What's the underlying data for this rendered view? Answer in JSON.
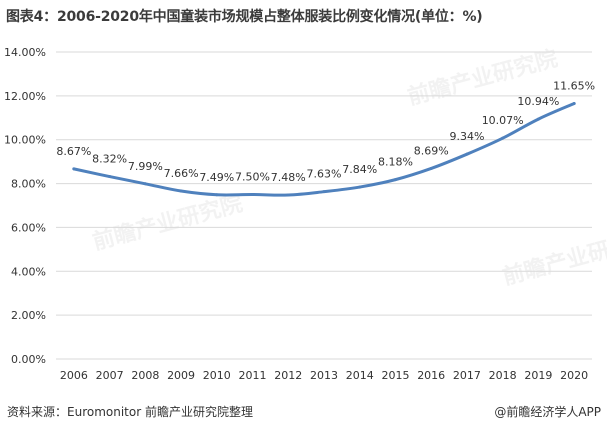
{
  "header": {
    "title": "图表4：2006-2020年中国童装市场规模占整体服装比例变化情况(单位：%)"
  },
  "footer": {
    "source": "资料来源：Euromonitor 前瞻产业研究院整理",
    "credit": "@前瞻经济学人APP"
  },
  "watermark": {
    "text": "前瞻产业研究院"
  },
  "colors": {
    "line": "#4f81bd",
    "grid": "#d9d9d9",
    "axis_text": "#333333",
    "label_text": "#333333"
  },
  "chart_data": {
    "type": "line",
    "title": "图表4：2006-2020年中国童装市场规模占整体服装比例变化情况(单位：%)",
    "xlabel": "",
    "ylabel": "",
    "categories": [
      "2006",
      "2007",
      "2008",
      "2009",
      "2010",
      "2011",
      "2012",
      "2013",
      "2014",
      "2015",
      "2016",
      "2017",
      "2018",
      "2019",
      "2020"
    ],
    "series": [
      {
        "values": [
          8.67,
          8.32,
          7.99,
          7.66,
          7.49,
          7.5,
          7.48,
          7.63,
          7.84,
          8.18,
          8.69,
          9.34,
          10.07,
          10.94,
          11.65
        ],
        "labels": [
          "8.67%",
          "8.32%",
          "7.99%",
          "7.66%",
          "7.49%",
          "7.50%",
          "7.48%",
          "7.63%",
          "7.84%",
          "8.18%",
          "8.69%",
          "9.34%",
          "10.07%",
          "10.94%",
          "11.65%"
        ]
      }
    ],
    "ylim": [
      0,
      14
    ],
    "yticks": [
      0,
      2,
      4,
      6,
      8,
      10,
      12,
      14
    ],
    "ytick_labels": [
      "0.00%",
      "2.00%",
      "4.00%",
      "6.00%",
      "8.00%",
      "10.00%",
      "12.00%",
      "14.00%"
    ],
    "grid": true,
    "legend": "none",
    "smooth": true
  }
}
